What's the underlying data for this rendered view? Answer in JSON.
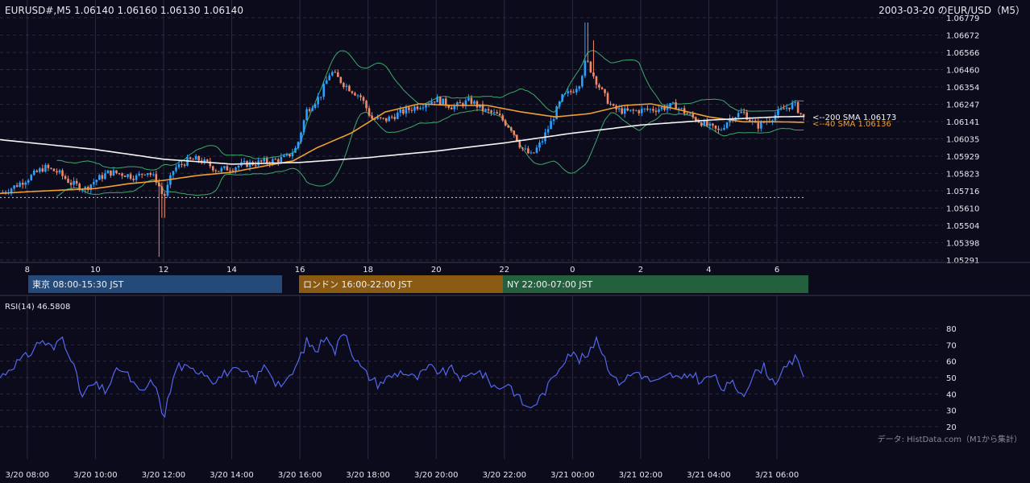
{
  "header": {
    "ohlc": "EURUSD#,M5 1.06140 1.06160 1.06130 1.06140",
    "title": "2003-03-20 のEUR/USD（M5）"
  },
  "colors": {
    "bg": "#0b0b1c",
    "bull": "#2aa0ff",
    "bear": "#ef8a68",
    "sma40": "#f0a030",
    "sma200": "#f4f4f4",
    "bollinger": "#3ea86a",
    "rsi": "#5566ee",
    "grid": "#2a2a3c"
  },
  "chart_data": [
    {
      "type": "candlestick",
      "series": [
        {
          "name": "<--200 SMA 1.06173",
          "label_value": 1.06173
        },
        {
          "name": "<--40 SMA 1.06136",
          "label_value": 1.06136
        }
      ],
      "y_ticks": [
        "1.06779",
        "1.06672",
        "1.06566",
        "1.06460",
        "1.06354",
        "1.06247",
        "1.06141",
        "1.06035",
        "1.05929",
        "1.05823",
        "1.05716",
        "1.05610",
        "1.05504",
        "1.05398",
        "1.05291"
      ],
      "ylim": [
        1.05291,
        1.06779
      ],
      "x_ticks": [
        "8",
        "10",
        "12",
        "14",
        "16",
        "18",
        "20",
        "22",
        "0",
        "2",
        "4",
        "6"
      ],
      "x_tick_hours": [
        8,
        10,
        12,
        14,
        16,
        18,
        20,
        22,
        24,
        26,
        28,
        30
      ],
      "xlim_hours": [
        7.2,
        30.85
      ],
      "reference_line": 1.05675,
      "sma200_knots": [
        [
          7.2,
          1.0603
        ],
        [
          10,
          1.0597
        ],
        [
          12,
          1.0591
        ],
        [
          14,
          1.0588
        ],
        [
          16,
          1.0589
        ],
        [
          18,
          1.0592
        ],
        [
          20,
          1.0596
        ],
        [
          22,
          1.0601
        ],
        [
          24,
          1.0607
        ],
        [
          26,
          1.0612
        ],
        [
          28,
          1.0615
        ],
        [
          30,
          1.0617
        ],
        [
          30.85,
          1.06173
        ]
      ],
      "sma40_knots": [
        [
          7.2,
          1.057
        ],
        [
          8,
          1.0571
        ],
        [
          9,
          1.0572
        ],
        [
          10,
          1.0573
        ],
        [
          11,
          1.0576
        ],
        [
          12,
          1.0578
        ],
        [
          13,
          1.0581
        ],
        [
          14,
          1.0583
        ],
        [
          15,
          1.0587
        ],
        [
          15.8,
          1.059
        ],
        [
          16.5,
          1.0598
        ],
        [
          17.5,
          1.0607
        ],
        [
          18.5,
          1.062
        ],
        [
          19.5,
          1.0625
        ],
        [
          20.5,
          1.0624
        ],
        [
          21.5,
          1.0624
        ],
        [
          22.5,
          1.062
        ],
        [
          23.5,
          1.0617
        ],
        [
          24.5,
          1.0619
        ],
        [
          25.5,
          1.0624
        ],
        [
          26.3,
          1.0625
        ],
        [
          27,
          1.0622
        ],
        [
          28,
          1.0617
        ],
        [
          29,
          1.0614
        ],
        [
          30,
          1.0614
        ],
        [
          30.85,
          1.06136
        ]
      ],
      "close_knots": [
        [
          7.2,
          1.057
        ],
        [
          7.6,
          1.0574
        ],
        [
          8.0,
          1.0579
        ],
        [
          8.5,
          1.0586
        ],
        [
          8.9,
          1.0583
        ],
        [
          9.3,
          1.0576
        ],
        [
          9.7,
          1.0573
        ],
        [
          10.0,
          1.0578
        ],
        [
          10.4,
          1.0583
        ],
        [
          10.8,
          1.0582
        ],
        [
          11.2,
          1.058
        ],
        [
          11.5,
          1.0584
        ],
        [
          11.8,
          1.0578
        ],
        [
          12.0,
          1.0567
        ],
        [
          12.3,
          1.0585
        ],
        [
          12.7,
          1.059
        ],
        [
          13.0,
          1.0591
        ],
        [
          13.3,
          1.0588
        ],
        [
          13.6,
          1.0584
        ],
        [
          14.0,
          1.0586
        ],
        [
          14.4,
          1.0588
        ],
        [
          14.8,
          1.0589
        ],
        [
          15.2,
          1.059
        ],
        [
          15.6,
          1.0592
        ],
        [
          15.9,
          1.0598
        ],
        [
          16.2,
          1.0621
        ],
        [
          16.6,
          1.063
        ],
        [
          16.9,
          1.0645
        ],
        [
          17.3,
          1.0637
        ],
        [
          17.8,
          1.0629
        ],
        [
          18.1,
          1.0616
        ],
        [
          18.5,
          1.0615
        ],
        [
          19.0,
          1.062
        ],
        [
          19.5,
          1.0624
        ],
        [
          20.0,
          1.0628
        ],
        [
          20.5,
          1.0623
        ],
        [
          21.0,
          1.0627
        ],
        [
          21.4,
          1.0621
        ],
        [
          21.8,
          1.0618
        ],
        [
          22.2,
          1.061
        ],
        [
          22.5,
          1.0598
        ],
        [
          22.8,
          1.0593
        ],
        [
          23.1,
          1.0602
        ],
        [
          23.4,
          1.0615
        ],
        [
          23.7,
          1.0629
        ],
        [
          24.0,
          1.0633
        ],
        [
          24.2,
          1.0638
        ],
        [
          24.4,
          1.0652
        ],
        [
          24.6,
          1.0643
        ],
        [
          24.9,
          1.0631
        ],
        [
          25.2,
          1.0622
        ],
        [
          25.6,
          1.062
        ],
        [
          26.0,
          1.0621
        ],
        [
          26.5,
          1.0622
        ],
        [
          27.0,
          1.0624
        ],
        [
          27.5,
          1.0617
        ],
        [
          28.0,
          1.0611
        ],
        [
          28.3,
          1.0608
        ],
        [
          28.6,
          1.0616
        ],
        [
          29.0,
          1.062
        ],
        [
          29.4,
          1.0611
        ],
        [
          29.8,
          1.0616
        ],
        [
          30.2,
          1.0622
        ],
        [
          30.5,
          1.0625
        ],
        [
          30.85,
          1.0614
        ]
      ],
      "spikes": [
        [
          11.9,
          1.0531
        ],
        [
          12.0,
          1.0555
        ],
        [
          24.4,
          1.0675
        ],
        [
          24.6,
          1.0664
        ]
      ]
    },
    {
      "type": "line",
      "series": [
        {
          "name": "RSI(14) 46.5808"
        }
      ],
      "y_ticks": [
        "80",
        "70",
        "60",
        "50",
        "40",
        "30",
        "20"
      ],
      "ylim": [
        20,
        80
      ],
      "x_ticks": [
        "3/20 08:00",
        "3/20 10:00",
        "3/20 12:00",
        "3/20 14:00",
        "3/20 16:00",
        "3/20 18:00",
        "3/20 20:00",
        "3/20 22:00",
        "3/21 00:00",
        "3/21 02:00",
        "3/21 04:00",
        "3/21 06:00"
      ],
      "rsi_knots": [
        [
          7.2,
          50
        ],
        [
          7.6,
          58
        ],
        [
          8.0,
          63
        ],
        [
          8.4,
          73
        ],
        [
          8.8,
          67
        ],
        [
          9.0,
          76
        ],
        [
          9.3,
          62
        ],
        [
          9.6,
          38
        ],
        [
          9.9,
          46
        ],
        [
          10.3,
          42
        ],
        [
          10.7,
          56
        ],
        [
          11.0,
          50
        ],
        [
          11.3,
          40
        ],
        [
          11.7,
          48
        ],
        [
          12.0,
          26
        ],
        [
          12.4,
          58
        ],
        [
          12.8,
          54
        ],
        [
          13.1,
          55
        ],
        [
          13.5,
          48
        ],
        [
          13.9,
          54
        ],
        [
          14.3,
          53
        ],
        [
          14.7,
          49
        ],
        [
          15.0,
          58
        ],
        [
          15.3,
          47
        ],
        [
          15.6,
          46
        ],
        [
          15.9,
          57
        ],
        [
          16.2,
          72
        ],
        [
          16.5,
          66
        ],
        [
          16.8,
          78
        ],
        [
          17.0,
          64
        ],
        [
          17.3,
          80
        ],
        [
          17.6,
          62
        ],
        [
          17.9,
          53
        ],
        [
          18.3,
          46
        ],
        [
          18.6,
          50
        ],
        [
          19.0,
          54
        ],
        [
          19.4,
          49
        ],
        [
          19.8,
          56
        ],
        [
          20.2,
          53
        ],
        [
          20.5,
          55
        ],
        [
          20.8,
          48
        ],
        [
          21.2,
          55
        ],
        [
          21.5,
          49
        ],
        [
          21.8,
          43
        ],
        [
          22.1,
          47
        ],
        [
          22.4,
          38
        ],
        [
          22.7,
          31
        ],
        [
          23.0,
          36
        ],
        [
          23.3,
          45
        ],
        [
          23.6,
          56
        ],
        [
          23.9,
          66
        ],
        [
          24.2,
          61
        ],
        [
          24.5,
          64
        ],
        [
          24.7,
          75
        ],
        [
          25.0,
          59
        ],
        [
          25.3,
          47
        ],
        [
          25.6,
          50
        ],
        [
          25.9,
          54
        ],
        [
          26.2,
          49
        ],
        [
          26.5,
          47
        ],
        [
          26.9,
          52
        ],
        [
          27.2,
          48
        ],
        [
          27.5,
          53
        ],
        [
          27.8,
          47
        ],
        [
          28.1,
          52
        ],
        [
          28.4,
          43
        ],
        [
          28.7,
          46
        ],
        [
          29.0,
          40
        ],
        [
          29.3,
          51
        ],
        [
          29.6,
          57
        ],
        [
          29.9,
          47
        ],
        [
          30.3,
          56
        ],
        [
          30.6,
          63
        ],
        [
          30.85,
          46.58
        ]
      ]
    }
  ],
  "sessions": [
    {
      "label": "東京 08:00-15:30 JST",
      "color": "#244a7a",
      "start": 8.0,
      "end": 15.5
    },
    {
      "label": "ロンドン 16:00-22:00 JST",
      "color": "#8a5a12",
      "start": 16.0,
      "end": 22.0
    },
    {
      "label": "NY 22:00-07:00 JST",
      "color": "#245f3e",
      "start": 22.0,
      "end": 31.0
    }
  ],
  "footer": {
    "credit": "データ: HistData.com（M1から集計）"
  }
}
